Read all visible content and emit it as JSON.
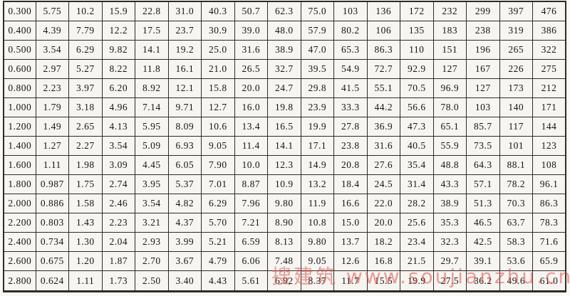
{
  "colors": {
    "paper": "#faf9f6",
    "cellbg": "#f6f5f1",
    "ink": "#171512",
    "grid": "#2e2b28",
    "wm": "#e0524f"
  },
  "watermark": {
    "text": "搜建筑 www.soujianzhu.cn"
  },
  "table": {
    "rows": [
      [
        "0.300",
        "5.75",
        "10.2",
        "15.9",
        "22.8",
        "31.0",
        "40.3",
        "50.7",
        "62.3",
        "75.0",
        "103",
        "136",
        "172",
        "232",
        "299",
        "397",
        "476"
      ],
      [
        "0.400",
        "4.39",
        "7.79",
        "12.2",
        "17.5",
        "23.7",
        "30.9",
        "39.0",
        "48.0",
        "57.9",
        "80.2",
        "106",
        "135",
        "183",
        "238",
        "319",
        "386"
      ],
      [
        "0.500",
        "3.54",
        "6.29",
        "9.82",
        "14.1",
        "19.2",
        "25.0",
        "31.6",
        "38.9",
        "47.0",
        "65.3",
        "86.3",
        "110",
        "151",
        "196",
        "265",
        "322"
      ],
      [
        "0.600",
        "2.97",
        "5.27",
        "8.22",
        "11.8",
        "16.1",
        "21.0",
        "26.5",
        "32.7",
        "39.5",
        "54.9",
        "72.7",
        "92.9",
        "127",
        "167",
        "226",
        "275"
      ],
      [
        "0.800",
        "2.23",
        "3.97",
        "6.20",
        "8.92",
        "12.1",
        "15.8",
        "20.0",
        "24.7",
        "29.8",
        "41.5",
        "55.1",
        "70.5",
        "96.9",
        "127",
        "173",
        "212"
      ],
      [
        "1.000",
        "1.79",
        "3.18",
        "4.96",
        "7.14",
        "9.71",
        "12.7",
        "16.0",
        "19.8",
        "23.9",
        "33.3",
        "44.2",
        "56.6",
        "78.0",
        "103",
        "140",
        "171"
      ],
      [
        "1.200",
        "1.49",
        "2.65",
        "4.13",
        "5.95",
        "8.09",
        "10.6",
        "13.4",
        "16.5",
        "19.9",
        "27.8",
        "36.9",
        "47.3",
        "65.1",
        "85.7",
        "117",
        "144"
      ],
      [
        "1.400",
        "1.27",
        "2.27",
        "3.54",
        "5.09",
        "6.93",
        "9.05",
        "11.4",
        "14.1",
        "17.1",
        "23.8",
        "31.6",
        "40.5",
        "55.9",
        "73.5",
        "101",
        "123"
      ],
      [
        "1.600",
        "1.11",
        "1.98",
        "3.09",
        "4.45",
        "6.05",
        "7.90",
        "10.0",
        "12.3",
        "14.9",
        "20.8",
        "27.6",
        "35.4",
        "48.8",
        "64.3",
        "88.1",
        "108"
      ],
      [
        "1.800",
        "0.987",
        "1.75",
        "2.74",
        "3.95",
        "5.37",
        "7.01",
        "8.87",
        "10.9",
        "13.2",
        "18.4",
        "24.5",
        "31.4",
        "43.3",
        "57.1",
        "78.2",
        "96.1"
      ],
      [
        "2.000",
        "0.886",
        "1.58",
        "2.46",
        "3.54",
        "4.82",
        "6.29",
        "7.96",
        "9.80",
        "11.9",
        "16.6",
        "22.0",
        "28.2",
        "38.9",
        "51.3",
        "70.3",
        "86.3"
      ],
      [
        "2.200",
        "0.803",
        "1.43",
        "2.23",
        "3.21",
        "4.37",
        "5.70",
        "7.21",
        "8.90",
        "10.8",
        "15.0",
        "20.0",
        "25.6",
        "35.3",
        "46.5",
        "63.7",
        "78.3"
      ],
      [
        "2.400",
        "0.734",
        "1.30",
        "2.04",
        "2.93",
        "3.99",
        "5.21",
        "6.59",
        "8.13",
        "9.80",
        "13.7",
        "18.2",
        "23.4",
        "32.3",
        "42.5",
        "58.3",
        "71.6"
      ],
      [
        "2.600",
        "0.675",
        "1.20",
        "1.87",
        "2.70",
        "3.67",
        "4.79",
        "6.06",
        "7.48",
        "9.05",
        "12.6",
        "16.8",
        "21.5",
        "29.7",
        "39.1",
        "53.6",
        "65.9"
      ],
      [
        "2.800",
        "0.624",
        "1.11",
        "1.73",
        "2.50",
        "3.40",
        "4.43",
        "5.61",
        "6.92",
        "8.37",
        "11.7",
        "15.5",
        "19.9",
        "27.5",
        "36.2",
        "49.6",
        "61.0"
      ]
    ]
  }
}
